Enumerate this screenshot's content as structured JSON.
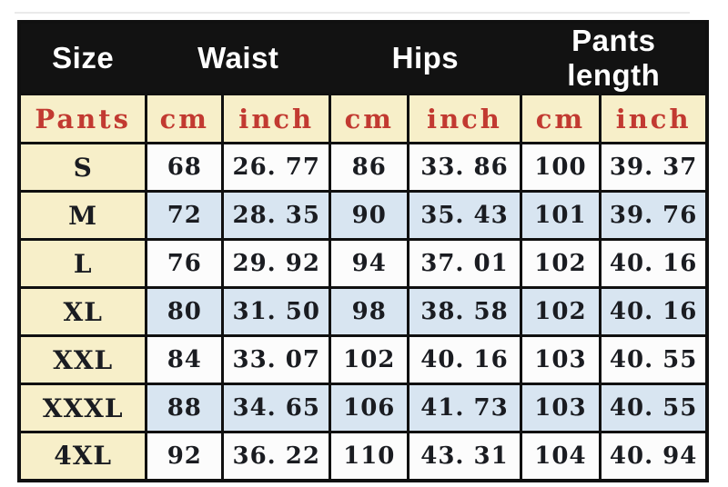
{
  "size_chart": {
    "group_header": {
      "size": "Size",
      "waist": "Waist",
      "hips": "Hips",
      "pants_length": "Pants length"
    },
    "unit_row": {
      "label": "Pants",
      "units": [
        "cm",
        "inch",
        "cm",
        "inch",
        "cm",
        "inch"
      ]
    },
    "rows": [
      {
        "size": "S",
        "values": [
          "68",
          "26. 77",
          "86",
          "33. 86",
          "100",
          "39. 37"
        ]
      },
      {
        "size": "M",
        "values": [
          "72",
          "28. 35",
          "90",
          "35. 43",
          "101",
          "39. 76"
        ]
      },
      {
        "size": "L",
        "values": [
          "76",
          "29. 92",
          "94",
          "37. 01",
          "102",
          "40. 16"
        ]
      },
      {
        "size": "XL",
        "values": [
          "80",
          "31. 50",
          "98",
          "38. 58",
          "102",
          "40. 16"
        ]
      },
      {
        "size": "XXL",
        "values": [
          "84",
          "33. 07",
          "102",
          "40. 16",
          "103",
          "40. 55"
        ]
      },
      {
        "size": "XXXL",
        "values": [
          "88",
          "34. 65",
          "106",
          "41. 73",
          "103",
          "40. 55"
        ]
      },
      {
        "size": "4XL",
        "values": [
          "92",
          "36. 22",
          "110",
          "43. 31",
          "104",
          "40. 94"
        ]
      }
    ],
    "colors": {
      "header_bg": "#121212",
      "header_text": "#ffffff",
      "unit_bg": "#f7efc9",
      "unit_text": "#c23a31",
      "size_column_bg": "#f7efc9",
      "row_bg": "#fcfcfc",
      "row_alt_bg": "#d8e5f1",
      "border": "#101010",
      "value_text": "#1a1c21"
    }
  },
  "chart_data": {
    "type": "table",
    "title": "Pants size chart",
    "column_groups": [
      "Size",
      "Waist",
      "Hips",
      "Pants length"
    ],
    "columns": [
      "Pants",
      "Waist cm",
      "Waist inch",
      "Hips cm",
      "Hips inch",
      "Pants length cm",
      "Pants length inch"
    ],
    "rows": [
      [
        "S",
        68,
        26.77,
        86,
        33.86,
        100,
        39.37
      ],
      [
        "M",
        72,
        28.35,
        90,
        35.43,
        101,
        39.76
      ],
      [
        "L",
        76,
        29.92,
        94,
        37.01,
        102,
        40.16
      ],
      [
        "XL",
        80,
        31.5,
        98,
        38.58,
        102,
        40.16
      ],
      [
        "XXL",
        84,
        33.07,
        102,
        40.16,
        103,
        40.55
      ],
      [
        "XXXL",
        88,
        34.65,
        106,
        41.73,
        103,
        40.55
      ],
      [
        "4XL",
        92,
        36.22,
        110,
        43.31,
        104,
        40.94
      ]
    ]
  }
}
